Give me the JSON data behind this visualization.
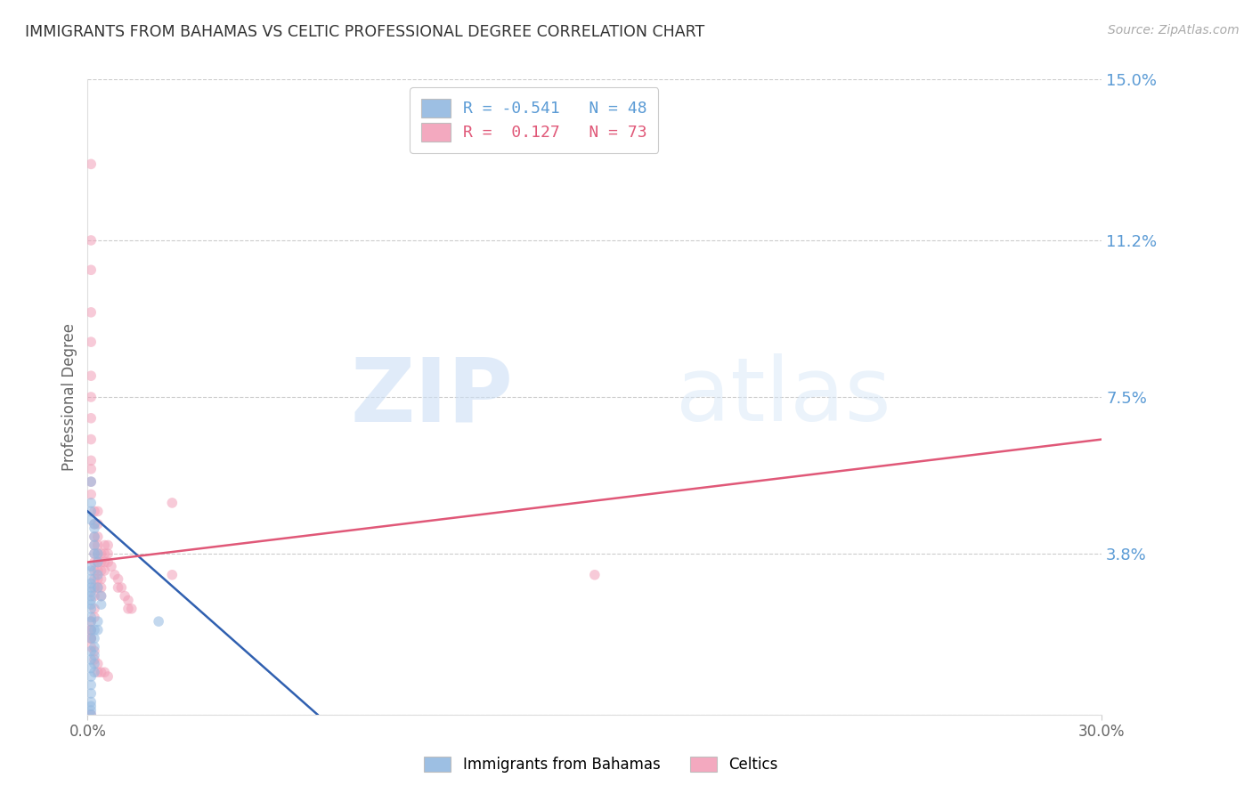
{
  "title": "IMMIGRANTS FROM BAHAMAS VS CELTIC PROFESSIONAL DEGREE CORRELATION CHART",
  "source_text": "Source: ZipAtlas.com",
  "ylabel": "Professional Degree",
  "watermark_zip": "ZIP",
  "watermark_atlas": "atlas",
  "xlim": [
    0.0,
    0.3
  ],
  "ylim": [
    0.0,
    0.15
  ],
  "ytick_positions": [
    0.0,
    0.038,
    0.075,
    0.112,
    0.15
  ],
  "ytick_labels": [
    "",
    "3.8%",
    "7.5%",
    "11.2%",
    "15.0%"
  ],
  "grid_color": "#cccccc",
  "background_color": "#ffffff",
  "legend_R1": "-0.541",
  "legend_N1": "48",
  "legend_R2": "0.127",
  "legend_N2": "73",
  "series1_label": "Immigrants from Bahamas",
  "series2_label": "Celtics",
  "series1_color": "#92b8e0",
  "series2_color": "#f2a0b8",
  "series1_line_color": "#3060b0",
  "series2_line_color": "#e05878",
  "dot_size": 70,
  "dot_alpha": 0.55,
  "series1_x": [
    0.001,
    0.001,
    0.001,
    0.001,
    0.002,
    0.002,
    0.002,
    0.002,
    0.002,
    0.003,
    0.003,
    0.003,
    0.003,
    0.004,
    0.004,
    0.001,
    0.001,
    0.001,
    0.001,
    0.001,
    0.001,
    0.001,
    0.001,
    0.001,
    0.001,
    0.001,
    0.001,
    0.001,
    0.001,
    0.001,
    0.001,
    0.001,
    0.001,
    0.001,
    0.001,
    0.001,
    0.001,
    0.001,
    0.001,
    0.002,
    0.002,
    0.002,
    0.002,
    0.002,
    0.002,
    0.003,
    0.003,
    0.021
  ],
  "series1_y": [
    0.055,
    0.05,
    0.048,
    0.046,
    0.045,
    0.044,
    0.042,
    0.04,
    0.038,
    0.038,
    0.036,
    0.033,
    0.03,
    0.028,
    0.026,
    0.035,
    0.034,
    0.032,
    0.031,
    0.03,
    0.029,
    0.028,
    0.027,
    0.026,
    0.025,
    0.023,
    0.022,
    0.02,
    0.018,
    0.015,
    0.013,
    0.011,
    0.009,
    0.007,
    0.005,
    0.003,
    0.002,
    0.001,
    0.0,
    0.02,
    0.018,
    0.016,
    0.014,
    0.012,
    0.01,
    0.022,
    0.02,
    0.022
  ],
  "series2_x": [
    0.001,
    0.001,
    0.001,
    0.001,
    0.001,
    0.001,
    0.001,
    0.001,
    0.001,
    0.001,
    0.001,
    0.001,
    0.001,
    0.002,
    0.002,
    0.002,
    0.002,
    0.002,
    0.002,
    0.002,
    0.002,
    0.002,
    0.002,
    0.002,
    0.002,
    0.003,
    0.003,
    0.003,
    0.003,
    0.003,
    0.003,
    0.003,
    0.003,
    0.003,
    0.004,
    0.004,
    0.004,
    0.004,
    0.004,
    0.004,
    0.005,
    0.005,
    0.005,
    0.005,
    0.006,
    0.006,
    0.006,
    0.007,
    0.008,
    0.009,
    0.009,
    0.01,
    0.011,
    0.012,
    0.012,
    0.013,
    0.001,
    0.001,
    0.001,
    0.002,
    0.002,
    0.003,
    0.003,
    0.004,
    0.005,
    0.006,
    0.001,
    0.001,
    0.001,
    0.025,
    0.001,
    0.025,
    0.15
  ],
  "series2_y": [
    0.13,
    0.112,
    0.105,
    0.095,
    0.088,
    0.08,
    0.075,
    0.07,
    0.065,
    0.06,
    0.058,
    0.055,
    0.052,
    0.048,
    0.045,
    0.042,
    0.04,
    0.038,
    0.036,
    0.034,
    0.032,
    0.03,
    0.028,
    0.025,
    0.023,
    0.048,
    0.045,
    0.042,
    0.04,
    0.038,
    0.036,
    0.034,
    0.032,
    0.03,
    0.038,
    0.036,
    0.034,
    0.032,
    0.03,
    0.028,
    0.04,
    0.038,
    0.036,
    0.034,
    0.04,
    0.038,
    0.036,
    0.035,
    0.033,
    0.032,
    0.03,
    0.03,
    0.028,
    0.027,
    0.025,
    0.025,
    0.02,
    0.018,
    0.016,
    0.015,
    0.013,
    0.012,
    0.01,
    0.01,
    0.01,
    0.009,
    0.022,
    0.02,
    0.018,
    0.05,
    0.0,
    0.033,
    0.033
  ],
  "blue_line_x0": 0.0,
  "blue_line_y0": 0.048,
  "blue_line_x1": 0.068,
  "blue_line_y1": 0.0,
  "pink_line_x0": 0.0,
  "pink_line_y0": 0.036,
  "pink_line_x1": 0.3,
  "pink_line_y1": 0.065
}
